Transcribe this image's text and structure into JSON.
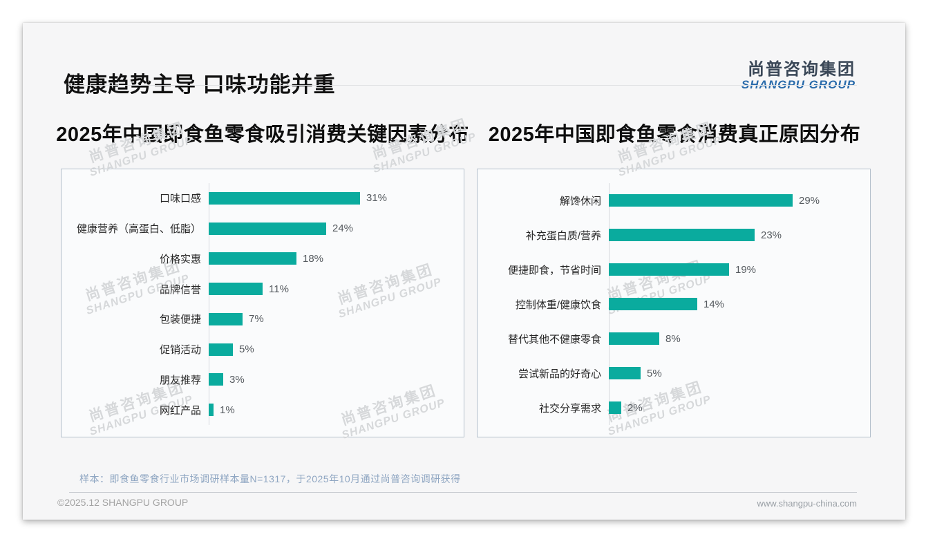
{
  "header": {
    "title": "健康趋势主导 口味功能并重"
  },
  "logo": {
    "cn": "尚普咨询集团",
    "en": "SHANGPU GROUP"
  },
  "watermark": {
    "cn": "尚普咨询集团",
    "en": "SHANGPU GROUP"
  },
  "colors": {
    "bar_teal": "#0aab9e",
    "logo_blue": "#2a6bab",
    "logo_dark": "#3a4757",
    "footnote_blue_gray": "#8fa6c2",
    "watermark_gray": "#d6d8da"
  },
  "chart_data": [
    {
      "type": "bar",
      "orientation": "horizontal",
      "title": "2025年中国即食鱼零食吸引消费关键因素分布",
      "categories": [
        "口味口感",
        "健康营养（高蛋白、低脂）",
        "价格实惠",
        "品牌信誉",
        "包装便捷",
        "促销活动",
        "朋友推荐",
        "网红产品"
      ],
      "values": [
        31,
        24,
        18,
        11,
        7,
        5,
        3,
        1
      ],
      "unit": "%",
      "value_labels": [
        "31%",
        "24%",
        "18%",
        "11%",
        "7%",
        "5%",
        "3%",
        "1%"
      ],
      "bar_color": "#0aab9e",
      "xlim": [
        0,
        35
      ],
      "grid": false,
      "legend": "none"
    },
    {
      "type": "bar",
      "orientation": "horizontal",
      "title": "2025年中国即食鱼零食消费真正原因分布",
      "categories": [
        "解馋休闲",
        "补充蛋白质/营养",
        "便捷即食，节省时间",
        "控制体重/健康饮食",
        "替代其他不健康零食",
        "尝试新品的好奇心",
        "社交分享需求"
      ],
      "values": [
        29,
        23,
        19,
        14,
        8,
        5,
        2
      ],
      "unit": "%",
      "value_labels": [
        "29%",
        "23%",
        "19%",
        "14%",
        "8%",
        "5%",
        "2%"
      ],
      "bar_color": "#0aab9e",
      "xlim": [
        0,
        32
      ],
      "grid": false,
      "legend": "none"
    }
  ],
  "footnote": "样本：即食鱼零食行业市场调研样本量N=1317，于2025年10月通过尚普咨询调研获得",
  "footer": {
    "left": "©2025.12 SHANGPU GROUP",
    "right": "www.shangpu-china.com"
  }
}
